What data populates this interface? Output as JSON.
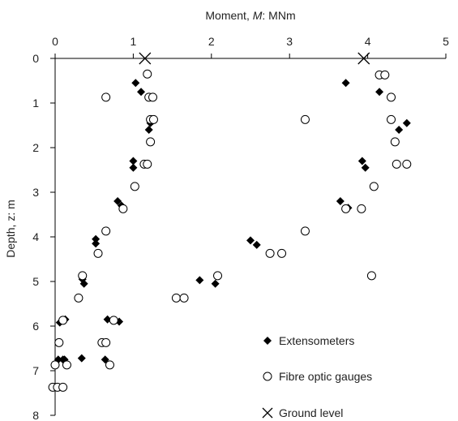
{
  "chart_data": {
    "type": "scatter",
    "title": "",
    "x_axis": {
      "label_prefix": "Moment, ",
      "label_symbol": "M",
      "label_suffix": ": MNm",
      "position": "top",
      "range": [
        0,
        5
      ],
      "ticks": [
        "0",
        "1",
        "2",
        "3",
        "4",
        "5"
      ]
    },
    "y_axis": {
      "label": "Depth, z: m",
      "inverted": true,
      "range": [
        0,
        8
      ],
      "ticks": [
        "0",
        "1",
        "2",
        "3",
        "4",
        "5",
        "6",
        "7",
        "8"
      ]
    },
    "grid": false,
    "legend_position": "bottom-right",
    "series": [
      {
        "name": "Extensometers",
        "marker": "diamond",
        "points": [
          [
            1.03,
            0.55
          ],
          [
            1.1,
            0.75
          ],
          [
            1.2,
            1.6
          ],
          [
            1.25,
            1.4
          ],
          [
            1.22,
            1.45
          ],
          [
            1.0,
            2.3
          ],
          [
            1.0,
            2.45
          ],
          [
            0.8,
            3.2
          ],
          [
            0.85,
            3.3
          ],
          [
            0.52,
            4.05
          ],
          [
            0.52,
            4.15
          ],
          [
            0.35,
            4.95
          ],
          [
            0.37,
            5.05
          ],
          [
            0.67,
            5.85
          ],
          [
            0.82,
            5.9
          ],
          [
            0.13,
            5.85
          ],
          [
            0.06,
            5.92
          ],
          [
            0.34,
            6.72
          ],
          [
            0.64,
            6.75
          ],
          [
            0.12,
            6.75
          ],
          [
            0.04,
            6.75
          ],
          [
            0.1,
            6.75
          ],
          [
            1.85,
            4.97
          ],
          [
            2.05,
            5.05
          ],
          [
            2.5,
            4.08
          ],
          [
            2.58,
            4.18
          ],
          [
            3.72,
            0.55
          ],
          [
            4.15,
            0.75
          ],
          [
            4.5,
            1.45
          ],
          [
            4.4,
            1.6
          ],
          [
            3.93,
            2.3
          ],
          [
            3.97,
            2.45
          ],
          [
            3.65,
            3.2
          ],
          [
            3.75,
            3.35
          ]
        ]
      },
      {
        "name": "Fibre optic gauges",
        "marker": "circle",
        "points": [
          [
            1.18,
            0.35
          ],
          [
            0.65,
            0.87
          ],
          [
            1.2,
            0.87
          ],
          [
            1.25,
            0.87
          ],
          [
            1.22,
            1.37
          ],
          [
            1.26,
            1.37
          ],
          [
            1.22,
            1.87
          ],
          [
            1.14,
            2.37
          ],
          [
            1.18,
            2.37
          ],
          [
            1.02,
            2.87
          ],
          [
            0.87,
            3.37
          ],
          [
            0.65,
            3.87
          ],
          [
            0.55,
            4.37
          ],
          [
            0.35,
            4.87
          ],
          [
            0.3,
            5.37
          ],
          [
            0.1,
            5.87
          ],
          [
            0.05,
            6.37
          ],
          [
            0.6,
            6.37
          ],
          [
            0.65,
            6.37
          ],
          [
            0.75,
            5.87
          ],
          [
            0.7,
            6.87
          ],
          [
            0.0,
            6.87
          ],
          [
            0.15,
            6.87
          ],
          [
            -0.03,
            7.37
          ],
          [
            0.03,
            7.37
          ],
          [
            0.1,
            7.37
          ],
          [
            1.55,
            5.37
          ],
          [
            1.65,
            5.37
          ],
          [
            2.08,
            4.87
          ],
          [
            2.75,
            4.37
          ],
          [
            2.9,
            4.37
          ],
          [
            3.2,
            3.87
          ],
          [
            3.2,
            1.37
          ],
          [
            3.72,
            3.37
          ],
          [
            3.92,
            3.37
          ],
          [
            4.05,
            4.87
          ],
          [
            4.08,
            2.87
          ],
          [
            4.37,
            2.37
          ],
          [
            4.5,
            2.37
          ],
          [
            4.35,
            1.87
          ],
          [
            4.3,
            1.37
          ],
          [
            4.3,
            0.87
          ],
          [
            4.15,
            0.37
          ],
          [
            4.22,
            0.37
          ]
        ]
      },
      {
        "name": "Ground level",
        "marker": "cross",
        "points": [
          [
            1.15,
            0.0
          ],
          [
            3.95,
            0.0
          ]
        ]
      }
    ]
  }
}
